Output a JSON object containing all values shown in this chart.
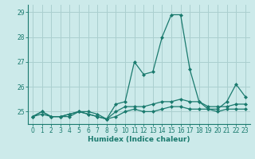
{
  "xlabel": "Humidex (Indice chaleur)",
  "x": [
    0,
    1,
    2,
    3,
    4,
    5,
    6,
    7,
    8,
    9,
    10,
    11,
    12,
    13,
    14,
    15,
    16,
    17,
    18,
    19,
    20,
    21,
    22,
    23
  ],
  "line1": [
    24.8,
    25.0,
    24.8,
    24.8,
    24.9,
    25.0,
    24.9,
    24.8,
    24.7,
    25.3,
    25.4,
    27.0,
    26.5,
    26.6,
    28.0,
    28.9,
    28.9,
    26.7,
    25.4,
    25.1,
    25.1,
    25.4,
    26.1,
    25.6
  ],
  "line2": [
    24.8,
    24.9,
    24.8,
    24.8,
    24.9,
    25.0,
    25.0,
    24.9,
    24.7,
    25.0,
    25.2,
    25.2,
    25.2,
    25.3,
    25.4,
    25.4,
    25.5,
    25.4,
    25.4,
    25.2,
    25.2,
    25.2,
    25.3,
    25.3
  ],
  "line3": [
    24.8,
    25.0,
    24.8,
    24.8,
    24.8,
    25.0,
    24.9,
    24.8,
    24.7,
    24.8,
    25.0,
    25.1,
    25.0,
    25.0,
    25.1,
    25.2,
    25.2,
    25.1,
    25.1,
    25.1,
    25.0,
    25.1,
    25.1,
    25.1
  ],
  "line_color": "#1a7a6e",
  "bg_color": "#cceaea",
  "grid_color": "#aacfcf",
  "ylim_min": 24.5,
  "ylim_max": 29.3,
  "yticks": [
    25,
    26,
    27,
    28,
    29
  ],
  "xticks": [
    0,
    1,
    2,
    3,
    4,
    5,
    6,
    7,
    8,
    9,
    10,
    11,
    12,
    13,
    14,
    15,
    16,
    17,
    18,
    19,
    20,
    21,
    22,
    23
  ],
  "tick_fontsize": 5.5,
  "xlabel_fontsize": 6.5
}
